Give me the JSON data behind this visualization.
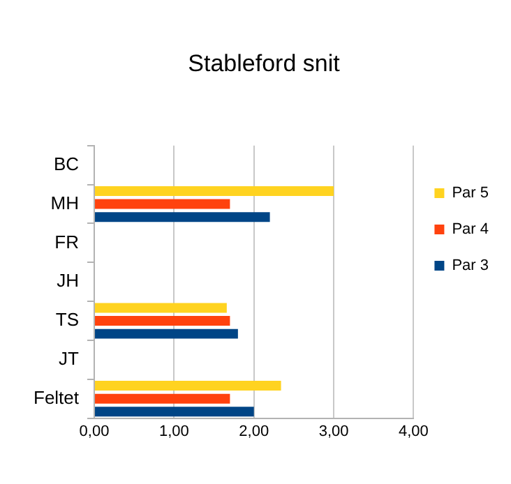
{
  "chart_data": {
    "type": "bar",
    "orientation": "horizontal",
    "title": "Stableford snit",
    "categories": [
      "BC",
      "MH",
      "FR",
      "JH",
      "TS",
      "JT",
      "Feltet"
    ],
    "series": [
      {
        "name": "Par 5",
        "color": "#ffd320",
        "values": [
          null,
          3.0,
          null,
          null,
          1.66,
          null,
          2.34
        ]
      },
      {
        "name": "Par 4",
        "color": "#ff420e",
        "values": [
          null,
          1.7,
          null,
          null,
          1.7,
          null,
          1.7
        ]
      },
      {
        "name": "Par 3",
        "color": "#004586",
        "values": [
          null,
          2.2,
          null,
          null,
          1.8,
          null,
          2.0
        ]
      }
    ],
    "xlim": [
      0,
      4
    ],
    "xticks": [
      {
        "value": 0,
        "label": "0,00"
      },
      {
        "value": 1,
        "label": "1,00"
      },
      {
        "value": 2,
        "label": "2,00"
      },
      {
        "value": 3,
        "label": "3,00"
      },
      {
        "value": 4,
        "label": "4,00"
      }
    ],
    "grid": "x",
    "legend": "right"
  }
}
